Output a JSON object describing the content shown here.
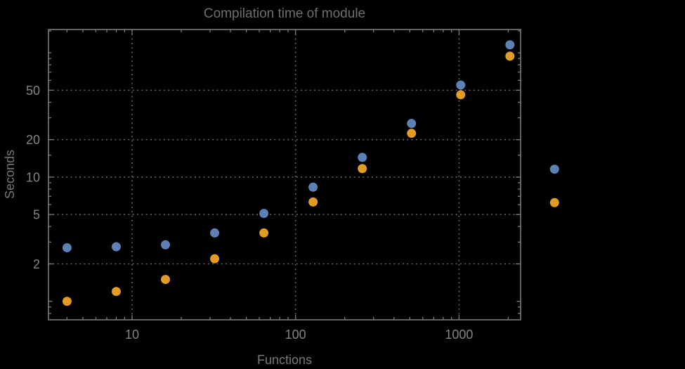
{
  "window": {
    "background": "#000000"
  },
  "chart_data": {
    "type": "scatter",
    "title": "Compilation time of module",
    "xlabel": "Functions",
    "ylabel": "Seconds",
    "x_scale": "log",
    "y_scale": "log",
    "grid": "dotted-major-gridlines",
    "xlim": [
      3.08,
      2380
    ],
    "ylim": [
      0.71,
      154
    ],
    "x": [
      4,
      8,
      16,
      32,
      64,
      128,
      256,
      512,
      1024,
      2048
    ],
    "series": [
      {
        "name": "series-1-blue",
        "color": "#5E81B5",
        "values": [
          2.7,
          2.75,
          2.85,
          3.55,
          5.1,
          8.3,
          14.4,
          27,
          55,
          116
        ]
      },
      {
        "name": "series-2-orange",
        "color": "#E19C24",
        "values": [
          1.0,
          1.2,
          1.5,
          2.2,
          3.55,
          6.3,
          11.7,
          22.5,
          46,
          94
        ]
      }
    ],
    "xticks": {
      "values": [
        10,
        100,
        1000
      ],
      "labels": [
        "10",
        "100",
        "1000"
      ]
    },
    "yticks": {
      "values": [
        2,
        5,
        10,
        20,
        50
      ],
      "labels": [
        "2",
        "5",
        "10",
        "20",
        "50"
      ]
    },
    "x_minor_ticks": [
      4,
      5,
      6,
      7,
      8,
      9,
      20,
      30,
      40,
      50,
      60,
      70,
      80,
      90,
      200,
      300,
      400,
      500,
      600,
      700,
      800,
      900,
      2000
    ],
    "y_minor_ticks": [
      0.8,
      0.9,
      1,
      3,
      4,
      6,
      7,
      8,
      9,
      15,
      30,
      40,
      60,
      70,
      80,
      90,
      100,
      150
    ],
    "legend": {
      "position": "right-outside",
      "labels_visible": false,
      "markers": [
        {
          "name": "legend-marker-series-1",
          "color": "#5E81B5"
        },
        {
          "name": "legend-marker-series-2",
          "color": "#E19C24"
        }
      ]
    }
  },
  "styles": {
    "frame_color": "#7a7a7a",
    "grid_color": "#666666",
    "title_color": "#6f6f6f",
    "label_color": "#787878",
    "tick_label_color": "#848484"
  }
}
